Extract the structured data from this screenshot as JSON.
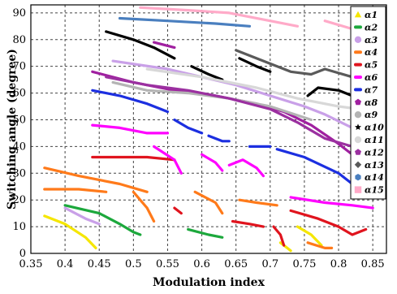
{
  "chart_data": {
    "type": "scatter",
    "title": "",
    "xlabel": "Modulation index",
    "ylabel": "Switching angle (degree)",
    "xlim": [
      0.35,
      0.87
    ],
    "ylim": [
      0,
      93
    ],
    "xticks": [
      "0.35",
      "0.4",
      "0.45",
      "0.5",
      "0.55",
      "0.6",
      "0.65",
      "0.7",
      "0.75",
      "0.8",
      "0.85"
    ],
    "xtick_values": [
      0.35,
      0.4,
      0.45,
      0.5,
      0.55,
      0.6,
      0.65,
      0.7,
      0.75,
      0.8,
      0.85
    ],
    "yticks": [
      "0",
      "10",
      "20",
      "30",
      "40",
      "50",
      "60",
      "70",
      "80",
      "90"
    ],
    "ytick_values": [
      0,
      10,
      20,
      30,
      40,
      50,
      60,
      70,
      80,
      90
    ],
    "grid": true,
    "legend_position": "right",
    "series": [
      {
        "name": "α1",
        "color": "#f5e600",
        "marker": "triangle",
        "segments": [
          [
            [
              0.37,
              14
            ],
            [
              0.4,
              11
            ],
            [
              0.43,
              6
            ],
            [
              0.445,
              2
            ]
          ],
          [
            [
              0.715,
              4
            ],
            [
              0.725,
              2
            ],
            [
              0.73,
              1
            ]
          ],
          [
            [
              0.74,
              10
            ],
            [
              0.76,
              7
            ],
            [
              0.775,
              3
            ]
          ]
        ]
      },
      {
        "name": "α2",
        "color": "#1ca83c",
        "marker": "line",
        "segments": [
          [
            [
              0.4,
              18
            ],
            [
              0.45,
              15
            ],
            [
              0.48,
              11
            ],
            [
              0.5,
              8
            ],
            [
              0.51,
              7
            ]
          ],
          [
            [
              0.58,
              9
            ],
            [
              0.61,
              7
            ],
            [
              0.63,
              6
            ]
          ]
        ]
      },
      {
        "name": "α3",
        "color": "#c9a0e8",
        "marker": "circle",
        "segments": [
          [
            [
              0.4,
              17
            ],
            [
              0.43,
              13
            ],
            [
              0.45,
              11
            ]
          ],
          [
            [
              0.47,
              72
            ],
            [
              0.55,
              69
            ],
            [
              0.6,
              66
            ],
            [
              0.65,
              63
            ],
            [
              0.7,
              59
            ],
            [
              0.75,
              55
            ],
            [
              0.78,
              52
            ],
            [
              0.82,
              47
            ]
          ]
        ]
      },
      {
        "name": "α4",
        "color": "#ff7a1a",
        "marker": "line",
        "segments": [
          [
            [
              0.37,
              32
            ],
            [
              0.42,
              29
            ],
            [
              0.48,
              26
            ],
            [
              0.52,
              23
            ]
          ],
          [
            [
              0.37,
              24
            ],
            [
              0.42,
              24
            ],
            [
              0.46,
              23
            ]
          ],
          [
            [
              0.5,
              23
            ],
            [
              0.52,
              17
            ],
            [
              0.53,
              12
            ]
          ],
          [
            [
              0.59,
              23
            ],
            [
              0.62,
              19
            ],
            [
              0.63,
              15
            ]
          ],
          [
            [
              0.655,
              20
            ],
            [
              0.68,
              19
            ],
            [
              0.71,
              18
            ]
          ],
          [
            [
              0.755,
              4
            ],
            [
              0.78,
              2
            ],
            [
              0.79,
              2
            ]
          ]
        ]
      },
      {
        "name": "α5",
        "color": "#e0141e",
        "marker": "line",
        "segments": [
          [
            [
              0.44,
              36
            ],
            [
              0.48,
              36
            ],
            [
              0.52,
              36
            ],
            [
              0.56,
              35
            ]
          ],
          [
            [
              0.56,
              17
            ],
            [
              0.57,
              15
            ]
          ],
          [
            [
              0.645,
              12
            ],
            [
              0.67,
              11
            ],
            [
              0.69,
              10
            ]
          ],
          [
            [
              0.705,
              10
            ],
            [
              0.715,
              7
            ],
            [
              0.72,
              3
            ]
          ],
          [
            [
              0.73,
              16
            ],
            [
              0.77,
              13
            ],
            [
              0.8,
              10
            ],
            [
              0.82,
              7
            ],
            [
              0.84,
              9
            ]
          ]
        ]
      },
      {
        "name": "α6",
        "color": "#ff00ff",
        "marker": "line",
        "segments": [
          [
            [
              0.44,
              48
            ],
            [
              0.48,
              47
            ],
            [
              0.52,
              45
            ],
            [
              0.55,
              45
            ]
          ],
          [
            [
              0.53,
              40
            ],
            [
              0.56,
              35
            ],
            [
              0.57,
              30
            ]
          ],
          [
            [
              0.6,
              37
            ],
            [
              0.62,
              34
            ],
            [
              0.63,
              31
            ]
          ],
          [
            [
              0.64,
              33
            ],
            [
              0.66,
              35
            ],
            [
              0.68,
              32
            ],
            [
              0.69,
              29
            ]
          ],
          [
            [
              0.73,
              21
            ],
            [
              0.78,
              19
            ],
            [
              0.82,
              18
            ],
            [
              0.85,
              17
            ]
          ]
        ]
      },
      {
        "name": "α7",
        "color": "#1c2fe0",
        "marker": "line",
        "segments": [
          [
            [
              0.44,
              61
            ],
            [
              0.48,
              59
            ],
            [
              0.52,
              56
            ],
            [
              0.55,
              53
            ]
          ],
          [
            [
              0.56,
              50
            ],
            [
              0.58,
              47
            ],
            [
              0.6,
              45
            ]
          ],
          [
            [
              0.61,
              44
            ],
            [
              0.63,
              42
            ],
            [
              0.64,
              42
            ]
          ],
          [
            [
              0.67,
              40
            ],
            [
              0.7,
              40
            ]
          ],
          [
            [
              0.71,
              39
            ],
            [
              0.75,
              36
            ],
            [
              0.8,
              30
            ],
            [
              0.83,
              24
            ],
            [
              0.86,
              25
            ]
          ]
        ]
      },
      {
        "name": "α8",
        "color": "#a020a0",
        "marker": "pentagon",
        "segments": [
          [
            [
              0.44,
              68
            ],
            [
              0.5,
              64
            ],
            [
              0.56,
              61
            ],
            [
              0.62,
              59
            ],
            [
              0.68,
              56
            ],
            [
              0.72,
              53
            ]
          ],
          [
            [
              0.72,
              53
            ],
            [
              0.76,
              48
            ],
            [
              0.8,
              41
            ],
            [
              0.83,
              35
            ],
            [
              0.86,
              31
            ]
          ],
          [
            [
              0.53,
              79
            ],
            [
              0.56,
              77
            ]
          ]
        ]
      },
      {
        "name": "α9",
        "color": "#b4b4b4",
        "marker": "circle",
        "segments": [
          [
            [
              0.47,
              64
            ],
            [
              0.52,
              61
            ],
            [
              0.58,
              60
            ],
            [
              0.64,
              58
            ],
            [
              0.7,
              55
            ],
            [
              0.76,
              50
            ]
          ]
        ]
      },
      {
        "name": "α10",
        "color": "#000000",
        "marker": "star",
        "segments": [
          [
            [
              0.46,
              83
            ],
            [
              0.5,
              80
            ],
            [
              0.53,
              77
            ],
            [
              0.56,
              73
            ]
          ],
          [
            [
              0.585,
              70
            ],
            [
              0.61,
              67
            ],
            [
              0.63,
              65
            ]
          ],
          [
            [
              0.655,
              73
            ],
            [
              0.68,
              70
            ],
            [
              0.7,
              68
            ]
          ],
          [
            [
              0.755,
              59
            ],
            [
              0.77,
              62
            ],
            [
              0.8,
              61
            ],
            [
              0.83,
              58
            ]
          ]
        ]
      },
      {
        "name": "α11",
        "color": "#d8d8d8",
        "marker": "circle",
        "segments": [
          [
            [
              0.52,
              69
            ],
            [
              0.6,
              66
            ],
            [
              0.68,
              62
            ],
            [
              0.74,
              58
            ],
            [
              0.8,
              55
            ],
            [
              0.86,
              53
            ]
          ]
        ]
      },
      {
        "name": "α12",
        "color": "#9b30a0",
        "marker": "pentagon",
        "segments": [
          [
            [
              0.46,
              66
            ],
            [
              0.52,
              63
            ],
            [
              0.58,
              61
            ],
            [
              0.64,
              58
            ],
            [
              0.7,
              54
            ],
            [
              0.74,
              49
            ],
            [
              0.78,
              43
            ],
            [
              0.82,
              40
            ],
            [
              0.86,
              40
            ]
          ]
        ]
      },
      {
        "name": "α13",
        "color": "#5a5a5a",
        "marker": "diamond",
        "segments": [
          [
            [
              0.65,
              76
            ],
            [
              0.7,
              71
            ],
            [
              0.73,
              68
            ],
            [
              0.76,
              67
            ],
            [
              0.78,
              69
            ],
            [
              0.82,
              66
            ],
            [
              0.85,
              63
            ]
          ]
        ]
      },
      {
        "name": "α14",
        "color": "#4a7fbf",
        "marker": "hexagon",
        "segments": [
          [
            [
              0.48,
              88
            ],
            [
              0.55,
              87
            ],
            [
              0.62,
              86
            ],
            [
              0.67,
              85
            ]
          ]
        ]
      },
      {
        "name": "α15",
        "color": "#ffaac8",
        "marker": "square",
        "segments": [
          [
            [
              0.51,
              92
            ],
            [
              0.58,
              91
            ],
            [
              0.64,
              90
            ],
            [
              0.7,
              87
            ],
            [
              0.74,
              85
            ]
          ],
          [
            [
              0.78,
              87
            ],
            [
              0.82,
              84
            ],
            [
              0.85,
              80
            ]
          ]
        ]
      }
    ]
  }
}
